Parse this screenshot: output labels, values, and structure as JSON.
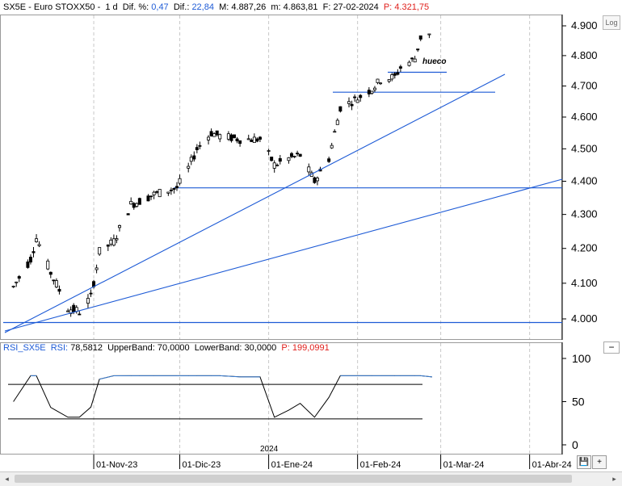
{
  "header": {
    "symbol": "SX5E - Euro STOXX50",
    "period": "1 d",
    "dif_pct_label": "Dif. %:",
    "dif_pct_value": "0,47",
    "dif_label": "Dif.:",
    "dif_value": "22,84",
    "max_label": "M:",
    "max_value": "4.887,26",
    "min_label": "m:",
    "min_value": "4.863,81",
    "date_label": "F:",
    "date_value": "27-02-2024",
    "price_label": "P:",
    "price_value": "4.321,75"
  },
  "rsi_header": {
    "name": "RSI_SX5E",
    "rsi_label": "RSI:",
    "rsi_value": "78,5812",
    "upper_label": "UpperBand:",
    "upper_value": "70,0000",
    "lower_label": "LowerBand:",
    "lower_value": "30,0000",
    "p_label": "P:",
    "p_value": "199,0991"
  },
  "buttons": {
    "log": "Log",
    "minus": "−",
    "save": "💾",
    "add": "+",
    "scroll_left": "◂",
    "scroll_right": "▸"
  },
  "colors": {
    "candle": "#000000",
    "trendline": "#1e5bd6",
    "rsi_line": "#000000",
    "rsi_overbought": "#3a7fd6",
    "band": "#000000"
  },
  "annotation": "hueco",
  "year_marker": "2024",
  "chart_data": [
    {
      "type": "candlestick",
      "title": "SX5E - Euro STOXX50",
      "y_ticks": [
        "4.900",
        "4.800",
        "4.700",
        "4.600",
        "4.500",
        "4.400",
        "4.300",
        "4.200",
        "4.100",
        "4.000"
      ],
      "y_tick_values": [
        4900,
        4800,
        4700,
        4600,
        4500,
        4400,
        4300,
        4200,
        4100,
        4000
      ],
      "log_scale": true,
      "grid": "vertical",
      "x_ticks": [
        "01-Nov-23",
        "01-Dic-23",
        "01-Ene-24",
        "01-Feb-24",
        "01-Mar-24",
        "01-Abr-24"
      ],
      "approx_close": [
        {
          "date": "2023-10-04",
          "close": 4090
        },
        {
          "date": "2023-10-10",
          "close": 4170
        },
        {
          "date": "2023-10-12",
          "close": 4230
        },
        {
          "date": "2023-10-17",
          "close": 4130
        },
        {
          "date": "2023-10-23",
          "close": 4030
        },
        {
          "date": "2023-10-27",
          "close": 4020
        },
        {
          "date": "2023-10-31",
          "close": 4060
        },
        {
          "date": "2023-11-03",
          "close": 4190
        },
        {
          "date": "2023-11-08",
          "close": 4220
        },
        {
          "date": "2023-11-14",
          "close": 4330
        },
        {
          "date": "2023-11-17",
          "close": 4340
        },
        {
          "date": "2023-11-22",
          "close": 4360
        },
        {
          "date": "2023-11-30",
          "close": 4380
        },
        {
          "date": "2023-12-04",
          "close": 4440
        },
        {
          "date": "2023-12-07",
          "close": 4500
        },
        {
          "date": "2023-12-12",
          "close": 4550
        },
        {
          "date": "2023-12-15",
          "close": 4540
        },
        {
          "date": "2023-12-22",
          "close": 4530
        },
        {
          "date": "2023-12-29",
          "close": 4530
        },
        {
          "date": "2024-01-03",
          "close": 4450
        },
        {
          "date": "2024-01-08",
          "close": 4470
        },
        {
          "date": "2024-01-12",
          "close": 4480
        },
        {
          "date": "2024-01-17",
          "close": 4400
        },
        {
          "date": "2024-01-22",
          "close": 4470
        },
        {
          "date": "2024-01-26",
          "close": 4630
        },
        {
          "date": "2024-02-01",
          "close": 4660
        },
        {
          "date": "2024-02-06",
          "close": 4690
        },
        {
          "date": "2024-02-09",
          "close": 4720
        },
        {
          "date": "2024-02-14",
          "close": 4730
        },
        {
          "date": "2024-02-16",
          "close": 4760
        },
        {
          "date": "2024-02-21",
          "close": 4790
        },
        {
          "date": "2024-02-23",
          "close": 4860
        },
        {
          "date": "2024-02-27",
          "close": 4875
        }
      ],
      "horizontal_lines": [
        3990,
        4380,
        4680,
        4745
      ],
      "annotations": [
        "hueco"
      ]
    },
    {
      "type": "line",
      "title": "RSI_SX5E",
      "y_ticks": [
        "100",
        "50",
        "0"
      ],
      "ylim": [
        0,
        100
      ],
      "upper_band": 70,
      "lower_band": 30,
      "x_ticks": [
        "01-Nov-23",
        "01-Dic-23",
        "01-Ene-24",
        "01-Feb-24",
        "01-Mar-24",
        "01-Abr-24"
      ],
      "last_value": 78.58
    }
  ]
}
